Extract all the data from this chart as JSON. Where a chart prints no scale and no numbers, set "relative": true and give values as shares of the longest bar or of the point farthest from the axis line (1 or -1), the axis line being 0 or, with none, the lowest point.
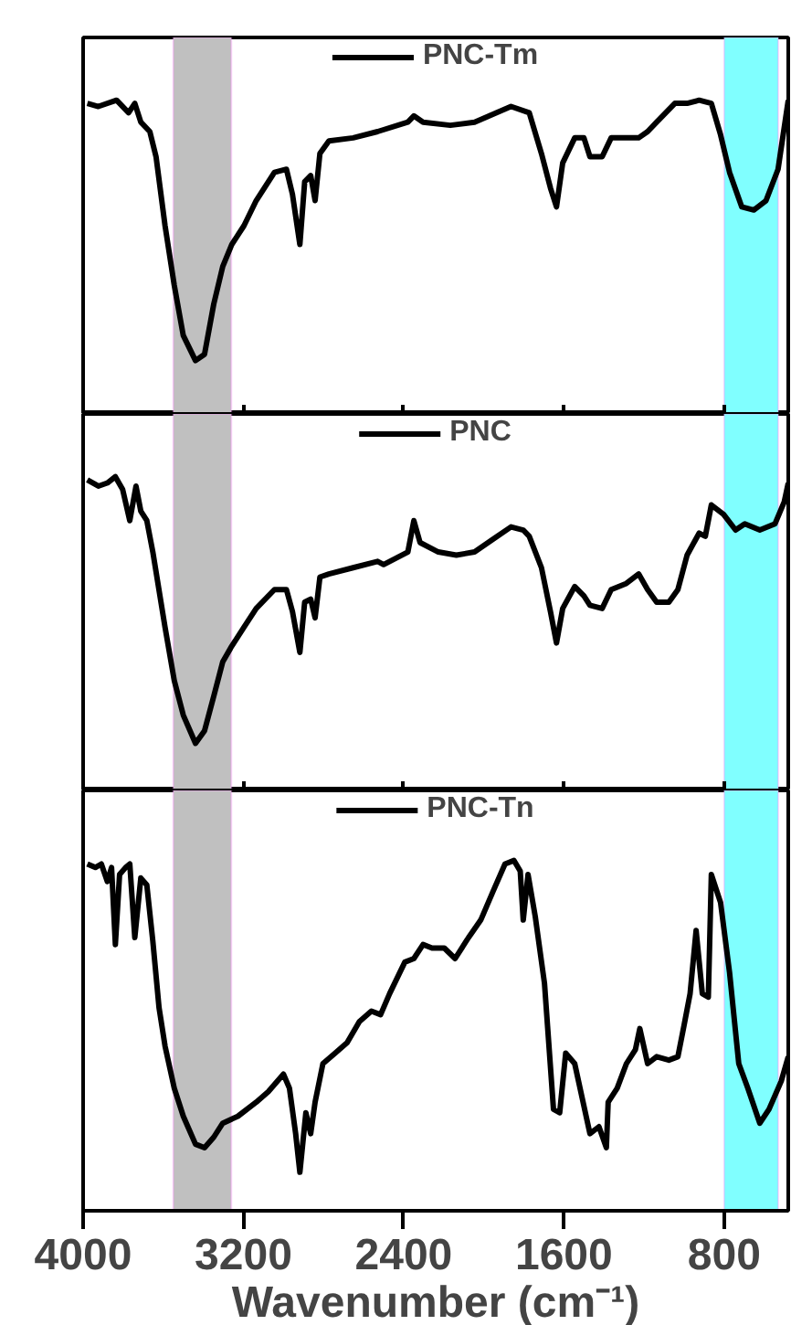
{
  "chart_data": [
    {
      "type": "line",
      "relative": true,
      "xlim": [
        4000,
        480
      ],
      "xticks": [
        4000,
        3200,
        2400,
        1600,
        800
      ],
      "tick_labels": false,
      "grid": false,
      "legend": "top",
      "x": [
        3979,
        3924,
        3833,
        3773,
        3742,
        3712,
        3667,
        3636,
        3591,
        3545,
        3500,
        3439,
        3394,
        3348,
        3303,
        3258,
        3197,
        3136,
        3045,
        2985,
        2955,
        2918,
        2894,
        2864,
        2842,
        2818,
        2773,
        2652,
        2530,
        2379,
        2349,
        2303,
        2167,
        2046,
        1864,
        1773,
        1712,
        1667,
        1637,
        1606,
        1546,
        1500,
        1470,
        1409,
        1364,
        1288,
        1227,
        1182,
        1137,
        1046,
        985,
        925,
        864,
        818,
        773,
        712,
        652,
        591,
        531,
        480
      ],
      "series": [
        {
          "name": "PNC-Tm",
          "color": "#000000",
          "values": [
            0.99,
            0.98,
            1.0,
            0.96,
            0.99,
            0.93,
            0.9,
            0.82,
            0.6,
            0.41,
            0.25,
            0.17,
            0.19,
            0.35,
            0.47,
            0.54,
            0.6,
            0.68,
            0.77,
            0.78,
            0.7,
            0.54,
            0.74,
            0.76,
            0.68,
            0.83,
            0.87,
            0.88,
            0.9,
            0.93,
            0.95,
            0.93,
            0.92,
            0.93,
            0.98,
            0.96,
            0.83,
            0.72,
            0.66,
            0.8,
            0.88,
            0.88,
            0.82,
            0.82,
            0.88,
            0.88,
            0.88,
            0.9,
            0.93,
            0.99,
            0.99,
            1.0,
            0.99,
            0.89,
            0.77,
            0.66,
            0.65,
            0.68,
            0.78,
            1.0
          ]
        }
      ],
      "bands": [
        {
          "axis": "x",
          "from": 3550,
          "to": 3260,
          "color": "#c0c0c0"
        },
        {
          "axis": "x",
          "from": 800,
          "to": 530,
          "color": "#80ffff"
        }
      ]
    },
    {
      "type": "line",
      "relative": true,
      "xlim": [
        4000,
        480
      ],
      "xticks": [
        4000,
        3200,
        2400,
        1600,
        800
      ],
      "tick_labels": false,
      "grid": false,
      "legend": "top",
      "x": [
        3979,
        3924,
        3879,
        3839,
        3803,
        3767,
        3736,
        3712,
        3682,
        3652,
        3591,
        3545,
        3500,
        3439,
        3394,
        3348,
        3303,
        3258,
        3197,
        3136,
        3045,
        2985,
        2955,
        2918,
        2894,
        2864,
        2842,
        2818,
        2773,
        2652,
        2530,
        2500,
        2379,
        2349,
        2318,
        2227,
        2137,
        2046,
        1955,
        1864,
        1803,
        1773,
        1712,
        1667,
        1637,
        1606,
        1546,
        1500,
        1470,
        1409,
        1364,
        1288,
        1227,
        1182,
        1137,
        1076,
        1031,
        985,
        925,
        894,
        864,
        803,
        743,
        697,
        622,
        546,
        500,
        480
      ],
      "series": [
        {
          "name": "PNC",
          "color": "#000000",
          "values": [
            0.99,
            0.97,
            0.98,
            1.0,
            0.96,
            0.86,
            0.97,
            0.89,
            0.86,
            0.76,
            0.52,
            0.35,
            0.24,
            0.15,
            0.19,
            0.3,
            0.41,
            0.46,
            0.52,
            0.58,
            0.64,
            0.64,
            0.57,
            0.44,
            0.6,
            0.61,
            0.55,
            0.68,
            0.69,
            0.71,
            0.73,
            0.72,
            0.76,
            0.86,
            0.79,
            0.76,
            0.75,
            0.76,
            0.8,
            0.84,
            0.83,
            0.81,
            0.71,
            0.57,
            0.47,
            0.58,
            0.65,
            0.62,
            0.59,
            0.58,
            0.64,
            0.66,
            0.69,
            0.64,
            0.6,
            0.6,
            0.64,
            0.75,
            0.82,
            0.81,
            0.91,
            0.88,
            0.83,
            0.85,
            0.83,
            0.85,
            0.92,
            0.98
          ]
        }
      ],
      "bands": [
        {
          "axis": "x",
          "from": 3550,
          "to": 3260,
          "color": "#c0c0c0"
        },
        {
          "axis": "x",
          "from": 800,
          "to": 530,
          "color": "#80ffff"
        }
      ]
    },
    {
      "type": "line",
      "relative": true,
      "xlim": [
        4000,
        480
      ],
      "xticks": [
        4000,
        3200,
        2400,
        1600,
        800
      ],
      "tick_labels": "x",
      "grid": false,
      "legend": "top",
      "xlabel": "Wavenumber (cm⁻¹)",
      "x": [
        3979,
        3939,
        3909,
        3879,
        3858,
        3839,
        3818,
        3788,
        3767,
        3742,
        3712,
        3682,
        3652,
        3621,
        3591,
        3545,
        3500,
        3439,
        3394,
        3348,
        3303,
        3227,
        3136,
        3076,
        3000,
        2970,
        2939,
        2918,
        2888,
        2864,
        2842,
        2803,
        2742,
        2682,
        2621,
        2561,
        2515,
        2470,
        2394,
        2349,
        2303,
        2258,
        2197,
        2143,
        2076,
        2015,
        1955,
        1894,
        1849,
        1818,
        1803,
        1779,
        1743,
        1697,
        1652,
        1621,
        1591,
        1546,
        1470,
        1425,
        1388,
        1379,
        1334,
        1288,
        1243,
        1221,
        1182,
        1137,
        1076,
        1031,
        1000,
        970,
        940,
        909,
        879,
        864,
        818,
        773,
        727,
        682,
        622,
        576,
        515,
        480
      ],
      "series": [
        {
          "name": "PNC-Tn",
          "color": "#000000",
          "values": [
            0.99,
            0.98,
            0.99,
            0.94,
            0.98,
            0.76,
            0.96,
            0.98,
            0.99,
            0.78,
            0.95,
            0.93,
            0.77,
            0.58,
            0.47,
            0.35,
            0.27,
            0.19,
            0.18,
            0.21,
            0.25,
            0.27,
            0.31,
            0.34,
            0.39,
            0.35,
            0.22,
            0.11,
            0.28,
            0.22,
            0.31,
            0.42,
            0.45,
            0.48,
            0.54,
            0.57,
            0.56,
            0.62,
            0.71,
            0.72,
            0.76,
            0.75,
            0.75,
            0.72,
            0.78,
            0.83,
            0.91,
            0.99,
            1.0,
            0.97,
            0.83,
            0.96,
            0.84,
            0.65,
            0.29,
            0.28,
            0.45,
            0.42,
            0.22,
            0.24,
            0.18,
            0.31,
            0.35,
            0.42,
            0.46,
            0.52,
            0.42,
            0.44,
            0.43,
            0.44,
            0.53,
            0.62,
            0.8,
            0.62,
            0.61,
            0.96,
            0.88,
            0.68,
            0.42,
            0.35,
            0.25,
            0.29,
            0.37,
            0.44
          ]
        }
      ],
      "bands": [
        {
          "axis": "x",
          "from": 3550,
          "to": 3260,
          "color": "#c0c0c0"
        },
        {
          "axis": "x",
          "from": 800,
          "to": 530,
          "color": "#80ffff"
        }
      ]
    }
  ]
}
